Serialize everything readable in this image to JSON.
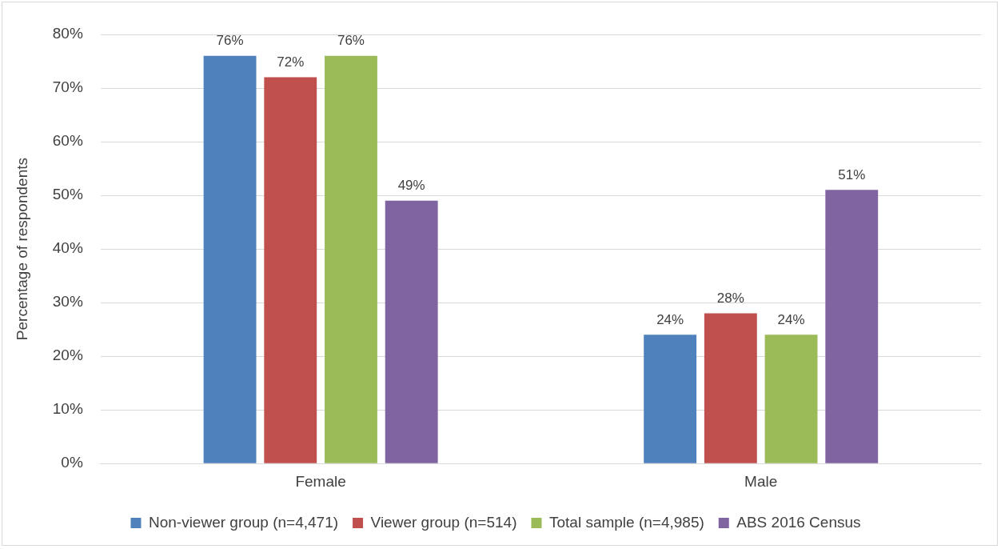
{
  "chart_data": {
    "type": "bar",
    "ylabel": "Percentage of respondents",
    "categories": [
      "Female",
      "Male"
    ],
    "series": [
      {
        "name": "Non-viewer group (n=4,471)",
        "color": "#4f81bd",
        "values": [
          76,
          24
        ],
        "value_labels": [
          "76%",
          "24%"
        ]
      },
      {
        "name": "Viewer group (n=514)",
        "color": "#c0504d",
        "values": [
          72,
          28
        ],
        "value_labels": [
          "72%",
          "28%"
        ]
      },
      {
        "name": "Total sample (n=4,985)",
        "color": "#9bbb59",
        "values": [
          76,
          24
        ],
        "value_labels": [
          "76%",
          "24%"
        ]
      },
      {
        "name": "ABS 2016 Census",
        "color": "#8064a2",
        "values": [
          49,
          51
        ],
        "value_labels": [
          "49%",
          "51%"
        ]
      }
    ],
    "ylim": [
      0,
      80
    ],
    "yticks": [
      {
        "value": 0,
        "label": "0%"
      },
      {
        "value": 10,
        "label": "10%"
      },
      {
        "value": 20,
        "label": "20%"
      },
      {
        "value": 30,
        "label": "30%"
      },
      {
        "value": 40,
        "label": "40%"
      },
      {
        "value": 50,
        "label": "50%"
      },
      {
        "value": 60,
        "label": "60%"
      },
      {
        "value": 70,
        "label": "70%"
      },
      {
        "value": 80,
        "label": "80%"
      }
    ],
    "grid": "y",
    "legend": "bottom"
  }
}
